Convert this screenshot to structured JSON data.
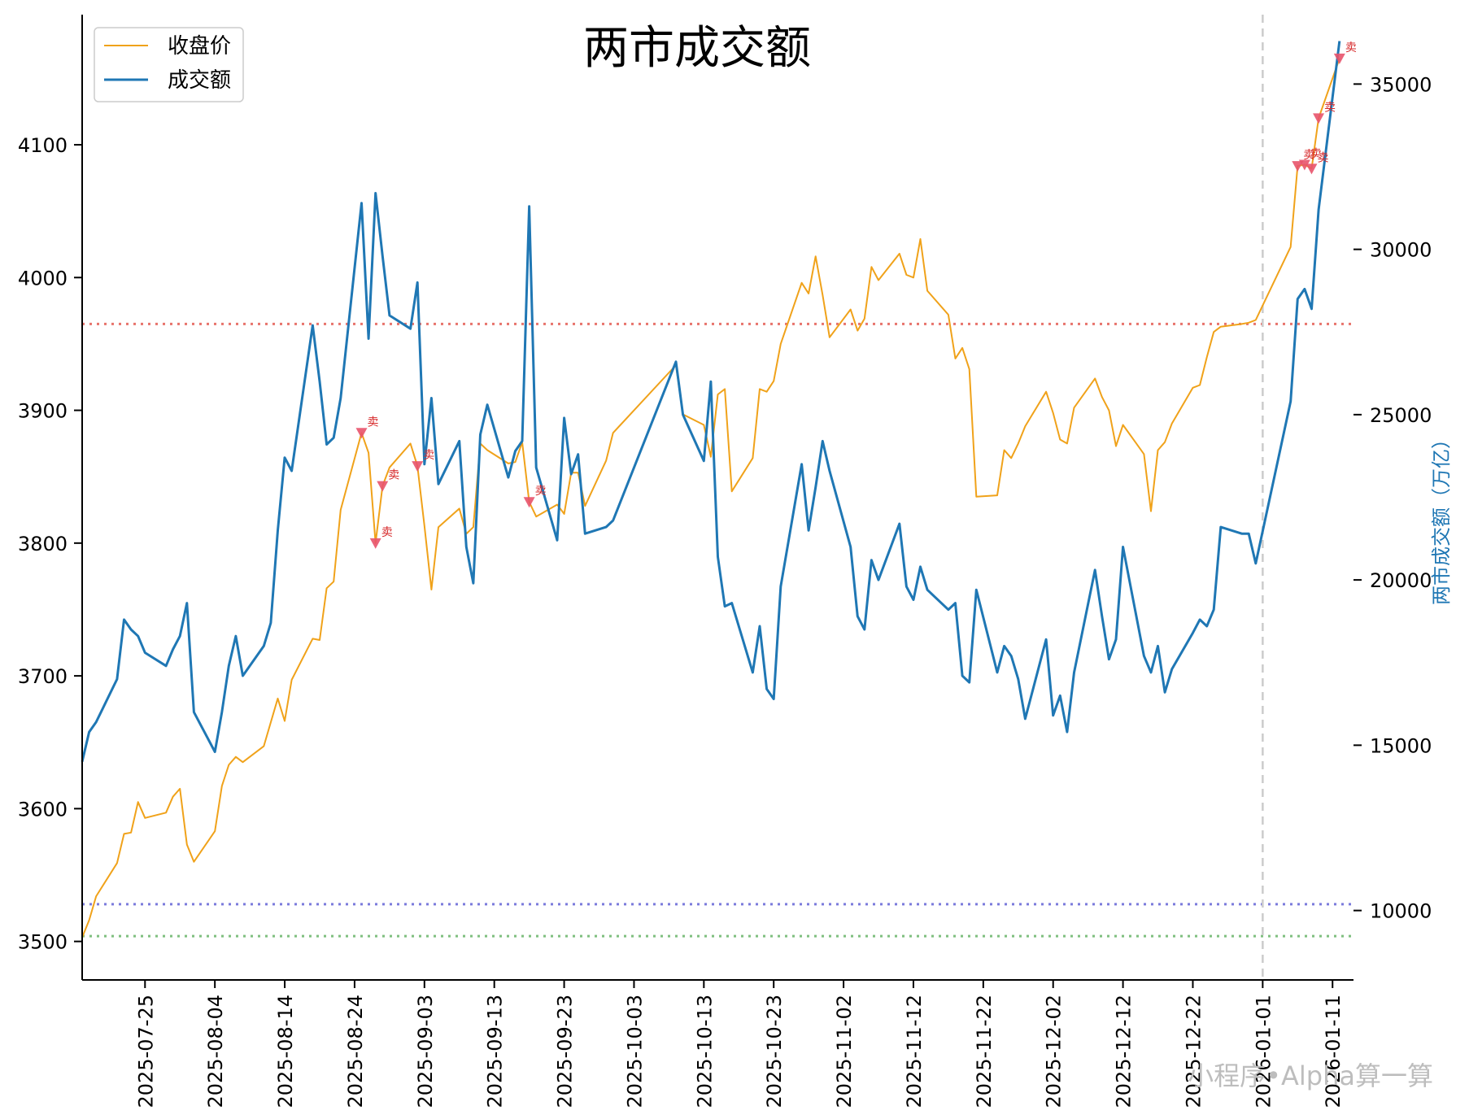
{
  "chart_data": {
    "type": "line",
    "title": "两市成交额",
    "ylabel_right": "两市成交额（万亿）",
    "watermark": "小程序•Alpha算一算",
    "x_ticks": [
      "2025-07-25",
      "2025-08-04",
      "2025-08-14",
      "2025-08-24",
      "2025-09-03",
      "2025-09-13",
      "2025-09-23",
      "2025-10-03",
      "2025-10-13",
      "2025-10-23",
      "2025-11-02",
      "2025-11-12",
      "2025-11-22",
      "2025-12-02",
      "2025-12-12",
      "2025-12-22",
      "2026-01-01",
      "2026-01-11"
    ],
    "y_left_ticks": [
      3500,
      3600,
      3700,
      3800,
      3900,
      4000,
      4100
    ],
    "y_right_ticks": [
      10000,
      15000,
      20000,
      25000,
      30000,
      35000
    ],
    "y_left_range": [
      3471,
      4198
    ],
    "y_right_range": [
      7900,
      37100
    ],
    "x_range": [
      "2025-07-16",
      "2026-01-14"
    ],
    "vline_date": "2026-01-01",
    "hlines": [
      {
        "axis": "left",
        "value": 3965,
        "color": "#e8736c"
      },
      {
        "axis": "left",
        "value": 3528,
        "color": "#7b7bdc"
      },
      {
        "axis": "left",
        "value": 3504,
        "color": "#7fbf7f"
      }
    ],
    "series": [
      {
        "name": "收盘价",
        "axis": "left",
        "color": "#f0a21a",
        "points": [
          [
            "2025-07-16",
            3503
          ],
          [
            "2025-07-17",
            3516
          ],
          [
            "2025-07-18",
            3534
          ],
          [
            "2025-07-21",
            3559
          ],
          [
            "2025-07-22",
            3581
          ],
          [
            "2025-07-23",
            3582
          ],
          [
            "2025-07-24",
            3605
          ],
          [
            "2025-07-25",
            3593
          ],
          [
            "2025-07-28",
            3597
          ],
          [
            "2025-07-29",
            3609
          ],
          [
            "2025-07-30",
            3615
          ],
          [
            "2025-07-31",
            3573
          ],
          [
            "2025-08-01",
            3560
          ],
          [
            "2025-08-04",
            3583
          ],
          [
            "2025-08-05",
            3617
          ],
          [
            "2025-08-06",
            3633
          ],
          [
            "2025-08-07",
            3639
          ],
          [
            "2025-08-08",
            3635
          ],
          [
            "2025-08-11",
            3647
          ],
          [
            "2025-08-12",
            3665
          ],
          [
            "2025-08-13",
            3683
          ],
          [
            "2025-08-14",
            3666
          ],
          [
            "2025-08-15",
            3697
          ],
          [
            "2025-08-18",
            3728
          ],
          [
            "2025-08-19",
            3727
          ],
          [
            "2025-08-20",
            3766
          ],
          [
            "2025-08-21",
            3771
          ],
          [
            "2025-08-22",
            3825
          ],
          [
            "2025-08-25",
            3883
          ],
          [
            "2025-08-26",
            3868
          ],
          [
            "2025-08-27",
            3800
          ],
          [
            "2025-08-28",
            3843
          ],
          [
            "2025-08-29",
            3857
          ],
          [
            "2025-09-01",
            3875
          ],
          [
            "2025-09-02",
            3858
          ],
          [
            "2025-09-03",
            3813
          ],
          [
            "2025-09-04",
            3765
          ],
          [
            "2025-09-05",
            3812
          ],
          [
            "2025-09-08",
            3826
          ],
          [
            "2025-09-09",
            3807
          ],
          [
            "2025-09-10",
            3812
          ],
          [
            "2025-09-11",
            3875
          ],
          [
            "2025-09-12",
            3870
          ],
          [
            "2025-09-15",
            3860
          ],
          [
            "2025-09-16",
            3861
          ],
          [
            "2025-09-17",
            3876
          ],
          [
            "2025-09-18",
            3831
          ],
          [
            "2025-09-19",
            3820
          ],
          [
            "2025-09-22",
            3829
          ],
          [
            "2025-09-23",
            3822
          ],
          [
            "2025-09-24",
            3853
          ],
          [
            "2025-09-25",
            3853
          ],
          [
            "2025-09-26",
            3828
          ],
          [
            "2025-09-29",
            3862
          ],
          [
            "2025-09-30",
            3883
          ],
          [
            "2025-10-09",
            3934
          ],
          [
            "2025-10-10",
            3897
          ],
          [
            "2025-10-13",
            3889
          ],
          [
            "2025-10-14",
            3865
          ],
          [
            "2025-10-15",
            3912
          ],
          [
            "2025-10-16",
            3916
          ],
          [
            "2025-10-17",
            3839
          ],
          [
            "2025-10-20",
            3864
          ],
          [
            "2025-10-21",
            3916
          ],
          [
            "2025-10-22",
            3914
          ],
          [
            "2025-10-23",
            3922
          ],
          [
            "2025-10-24",
            3950
          ],
          [
            "2025-10-27",
            3996
          ],
          [
            "2025-10-28",
            3988
          ],
          [
            "2025-10-29",
            4016
          ],
          [
            "2025-10-30",
            3987
          ],
          [
            "2025-10-31",
            3955
          ],
          [
            "2025-11-03",
            3976
          ],
          [
            "2025-11-04",
            3960
          ],
          [
            "2025-11-05",
            3969
          ],
          [
            "2025-11-06",
            4008
          ],
          [
            "2025-11-07",
            3998
          ],
          [
            "2025-11-10",
            4018
          ],
          [
            "2025-11-11",
            4002
          ],
          [
            "2025-11-12",
            4000
          ],
          [
            "2025-11-13",
            4029
          ],
          [
            "2025-11-14",
            3990
          ],
          [
            "2025-11-17",
            3972
          ],
          [
            "2025-11-18",
            3939
          ],
          [
            "2025-11-19",
            3947
          ],
          [
            "2025-11-20",
            3931
          ],
          [
            "2025-11-21",
            3835
          ],
          [
            "2025-11-24",
            3836
          ],
          [
            "2025-11-25",
            3870
          ],
          [
            "2025-11-26",
            3864
          ],
          [
            "2025-11-27",
            3875
          ],
          [
            "2025-11-28",
            3888
          ],
          [
            "2025-12-01",
            3914
          ],
          [
            "2025-12-02",
            3898
          ],
          [
            "2025-12-03",
            3878
          ],
          [
            "2025-12-04",
            3875
          ],
          [
            "2025-12-05",
            3902
          ],
          [
            "2025-12-08",
            3924
          ],
          [
            "2025-12-09",
            3910
          ],
          [
            "2025-12-10",
            3900
          ],
          [
            "2025-12-11",
            3873
          ],
          [
            "2025-12-12",
            3889
          ],
          [
            "2025-12-15",
            3867
          ],
          [
            "2025-12-16",
            3824
          ],
          [
            "2025-12-17",
            3870
          ],
          [
            "2025-12-18",
            3876
          ],
          [
            "2025-12-19",
            3890
          ],
          [
            "2025-12-22",
            3917
          ],
          [
            "2025-12-23",
            3919
          ],
          [
            "2025-12-24",
            3940
          ],
          [
            "2025-12-25",
            3959
          ],
          [
            "2025-12-26",
            3963
          ],
          [
            "2025-12-29",
            3965
          ],
          [
            "2025-12-30",
            3966
          ],
          [
            "2025-12-31",
            3968
          ],
          [
            "2026-01-05",
            4023
          ],
          [
            "2026-01-06",
            4084
          ],
          [
            "2026-01-07",
            4085
          ],
          [
            "2026-01-08",
            4082
          ],
          [
            "2026-01-09",
            4120
          ],
          [
            "2026-01-12",
            4165
          ]
        ]
      },
      {
        "name": "成交额",
        "axis": "right",
        "color": "#1f77b4",
        "points": [
          [
            "2025-07-16",
            14500
          ],
          [
            "2025-07-17",
            15400
          ],
          [
            "2025-07-18",
            15700
          ],
          [
            "2025-07-21",
            17000
          ],
          [
            "2025-07-22",
            18800
          ],
          [
            "2025-07-23",
            18500
          ],
          [
            "2025-07-24",
            18300
          ],
          [
            "2025-07-25",
            17800
          ],
          [
            "2025-07-28",
            17400
          ],
          [
            "2025-07-29",
            17900
          ],
          [
            "2025-07-30",
            18300
          ],
          [
            "2025-07-31",
            19300
          ],
          [
            "2025-08-01",
            16000
          ],
          [
            "2025-08-04",
            14800
          ],
          [
            "2025-08-05",
            16000
          ],
          [
            "2025-08-06",
            17400
          ],
          [
            "2025-08-07",
            18300
          ],
          [
            "2025-08-08",
            17100
          ],
          [
            "2025-08-11",
            18000
          ],
          [
            "2025-08-12",
            18700
          ],
          [
            "2025-08-13",
            21500
          ],
          [
            "2025-08-14",
            23700
          ],
          [
            "2025-08-15",
            23300
          ],
          [
            "2025-08-18",
            27700
          ],
          [
            "2025-08-19",
            26000
          ],
          [
            "2025-08-20",
            24100
          ],
          [
            "2025-08-21",
            24300
          ],
          [
            "2025-08-22",
            25500
          ],
          [
            "2025-08-25",
            31400
          ],
          [
            "2025-08-26",
            27300
          ],
          [
            "2025-08-27",
            31700
          ],
          [
            "2025-08-28",
            29800
          ],
          [
            "2025-08-29",
            28000
          ],
          [
            "2025-09-01",
            27600
          ],
          [
            "2025-09-02",
            29000
          ],
          [
            "2025-09-03",
            23500
          ],
          [
            "2025-09-04",
            25500
          ],
          [
            "2025-09-05",
            22900
          ],
          [
            "2025-09-08",
            24200
          ],
          [
            "2025-09-09",
            21000
          ],
          [
            "2025-09-10",
            19900
          ],
          [
            "2025-09-11",
            24400
          ],
          [
            "2025-09-12",
            25300
          ],
          [
            "2025-09-15",
            23100
          ],
          [
            "2025-09-16",
            23900
          ],
          [
            "2025-09-17",
            24200
          ],
          [
            "2025-09-18",
            31300
          ],
          [
            "2025-09-19",
            23400
          ],
          [
            "2025-09-22",
            21200
          ],
          [
            "2025-09-23",
            24900
          ],
          [
            "2025-09-24",
            23200
          ],
          [
            "2025-09-25",
            23800
          ],
          [
            "2025-09-26",
            21400
          ],
          [
            "2025-09-29",
            21600
          ],
          [
            "2025-09-30",
            21800
          ],
          [
            "2025-10-09",
            26600
          ],
          [
            "2025-10-10",
            25000
          ],
          [
            "2025-10-13",
            23600
          ],
          [
            "2025-10-14",
            26000
          ],
          [
            "2025-10-15",
            20700
          ],
          [
            "2025-10-16",
            19200
          ],
          [
            "2025-10-17",
            19300
          ],
          [
            "2025-10-20",
            17200
          ],
          [
            "2025-10-21",
            18600
          ],
          [
            "2025-10-22",
            16700
          ],
          [
            "2025-10-23",
            16400
          ],
          [
            "2025-10-24",
            19800
          ],
          [
            "2025-10-27",
            23500
          ],
          [
            "2025-10-28",
            21500
          ],
          [
            "2025-10-29",
            22800
          ],
          [
            "2025-10-30",
            24200
          ],
          [
            "2025-10-31",
            23300
          ],
          [
            "2025-11-03",
            21000
          ],
          [
            "2025-11-04",
            18900
          ],
          [
            "2025-11-05",
            18500
          ],
          [
            "2025-11-06",
            20600
          ],
          [
            "2025-11-07",
            20000
          ],
          [
            "2025-11-10",
            21700
          ],
          [
            "2025-11-11",
            19800
          ],
          [
            "2025-11-12",
            19400
          ],
          [
            "2025-11-13",
            20400
          ],
          [
            "2025-11-14",
            19700
          ],
          [
            "2025-11-17",
            19100
          ],
          [
            "2025-11-18",
            19300
          ],
          [
            "2025-11-19",
            17100
          ],
          [
            "2025-11-20",
            16900
          ],
          [
            "2025-11-21",
            19700
          ],
          [
            "2025-11-24",
            17200
          ],
          [
            "2025-11-25",
            18000
          ],
          [
            "2025-11-26",
            17700
          ],
          [
            "2025-11-27",
            17000
          ],
          [
            "2025-11-28",
            15800
          ],
          [
            "2025-12-01",
            18200
          ],
          [
            "2025-12-02",
            15900
          ],
          [
            "2025-12-03",
            16500
          ],
          [
            "2025-12-04",
            15400
          ],
          [
            "2025-12-05",
            17200
          ],
          [
            "2025-12-08",
            20300
          ],
          [
            "2025-12-09",
            18900
          ],
          [
            "2025-12-10",
            17600
          ],
          [
            "2025-12-11",
            18200
          ],
          [
            "2025-12-12",
            21000
          ],
          [
            "2025-12-15",
            17700
          ],
          [
            "2025-12-16",
            17200
          ],
          [
            "2025-12-17",
            18000
          ],
          [
            "2025-12-18",
            16600
          ],
          [
            "2025-12-19",
            17300
          ],
          [
            "2025-12-22",
            18400
          ],
          [
            "2025-12-23",
            18800
          ],
          [
            "2025-12-24",
            18600
          ],
          [
            "2025-12-25",
            19100
          ],
          [
            "2025-12-26",
            21600
          ],
          [
            "2025-12-29",
            21400
          ],
          [
            "2025-12-30",
            21400
          ],
          [
            "2025-12-31",
            20500
          ],
          [
            "2026-01-05",
            25400
          ],
          [
            "2026-01-06",
            28500
          ],
          [
            "2026-01-07",
            28800
          ],
          [
            "2026-01-08",
            28200
          ],
          [
            "2026-01-09",
            31200
          ],
          [
            "2026-01-12",
            36300
          ]
        ]
      }
    ],
    "sell_markers": {
      "label": "卖",
      "color": "#e8536c",
      "points": [
        [
          "2025-08-25",
          3883
        ],
        [
          "2025-08-27",
          3800
        ],
        [
          "2025-08-28",
          3843
        ],
        [
          "2025-09-02",
          3858
        ],
        [
          "2025-09-18",
          3831
        ],
        [
          "2026-01-06",
          4084
        ],
        [
          "2026-01-07",
          4085
        ],
        [
          "2026-01-08",
          4082
        ],
        [
          "2026-01-09",
          4120
        ],
        [
          "2026-01-12",
          4165
        ]
      ]
    }
  }
}
